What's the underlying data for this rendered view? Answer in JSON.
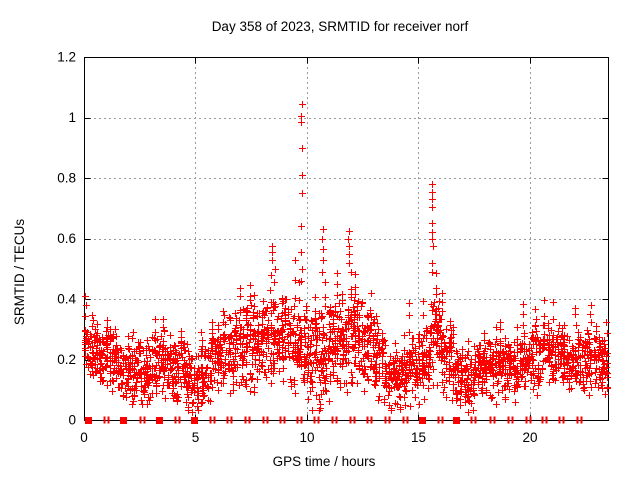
{
  "chart_data": {
    "type": "scatter",
    "title": "Day 358 of 2023, SRMTID for receiver norf",
    "xlabel": "GPS time / hours",
    "ylabel": "SRMTID / TECUs",
    "xlim": [
      0,
      23.5
    ],
    "ylim": [
      0,
      1.2
    ],
    "xticks": [
      0,
      5,
      10,
      15,
      20
    ],
    "yticks": [
      0,
      0.2,
      0.4,
      0.6,
      0.8,
      1,
      1.2
    ],
    "grid": {
      "on": true,
      "color": "#9a9a9a",
      "dash": "2 3"
    },
    "frame_color": "#000000",
    "marker": {
      "shape": "plus",
      "color": "#ff0000",
      "size": 7
    },
    "series": [
      {
        "name": "SRMTID",
        "note": "dense plus-marker scatter; envelope_bins give [startHour, bandLow, bandHigh, tailMax] per 0.5 h bin as read from the plot",
        "envelope_bins": [
          [
            0.0,
            0.14,
            0.3,
            0.36
          ],
          [
            0.5,
            0.13,
            0.28,
            0.33
          ],
          [
            1.0,
            0.1,
            0.3,
            0.36
          ],
          [
            1.5,
            0.08,
            0.24,
            0.3
          ],
          [
            2.0,
            0.08,
            0.26,
            0.3
          ],
          [
            2.5,
            0.06,
            0.24,
            0.28
          ],
          [
            3.0,
            0.1,
            0.28,
            0.35
          ],
          [
            3.5,
            0.1,
            0.3,
            0.35
          ],
          [
            4.0,
            0.08,
            0.26,
            0.3
          ],
          [
            4.5,
            0.05,
            0.22,
            0.26
          ],
          [
            5.0,
            0.06,
            0.24,
            0.3
          ],
          [
            5.5,
            0.1,
            0.28,
            0.33
          ],
          [
            6.0,
            0.12,
            0.32,
            0.38
          ],
          [
            6.5,
            0.12,
            0.36,
            0.47
          ],
          [
            7.0,
            0.13,
            0.38,
            0.47
          ],
          [
            7.5,
            0.12,
            0.36,
            0.44
          ],
          [
            8.0,
            0.14,
            0.4,
            0.52
          ],
          [
            8.5,
            0.15,
            0.42,
            0.55
          ],
          [
            9.0,
            0.13,
            0.4,
            0.55
          ],
          [
            9.5,
            0.12,
            0.38,
            0.5
          ],
          [
            10.0,
            0.08,
            0.34,
            0.44
          ],
          [
            10.5,
            0.08,
            0.36,
            0.5
          ],
          [
            11.0,
            0.12,
            0.4,
            0.52
          ],
          [
            11.5,
            0.13,
            0.42,
            0.52
          ],
          [
            12.0,
            0.13,
            0.4,
            0.5
          ],
          [
            12.5,
            0.1,
            0.36,
            0.45
          ],
          [
            13.0,
            0.08,
            0.3,
            0.38
          ],
          [
            13.5,
            0.05,
            0.22,
            0.28
          ],
          [
            14.0,
            0.06,
            0.22,
            0.3
          ],
          [
            14.5,
            0.08,
            0.28,
            0.42
          ],
          [
            15.0,
            0.1,
            0.32,
            0.45
          ],
          [
            15.5,
            0.13,
            0.4,
            0.5
          ],
          [
            16.0,
            0.12,
            0.35,
            0.45
          ],
          [
            16.5,
            0.06,
            0.24,
            0.33
          ],
          [
            17.0,
            0.05,
            0.22,
            0.28
          ],
          [
            17.5,
            0.08,
            0.25,
            0.31
          ],
          [
            18.0,
            0.08,
            0.26,
            0.33
          ],
          [
            18.5,
            0.1,
            0.28,
            0.36
          ],
          [
            19.0,
            0.08,
            0.26,
            0.33
          ],
          [
            19.5,
            0.11,
            0.3,
            0.41
          ],
          [
            20.0,
            0.11,
            0.32,
            0.38
          ],
          [
            20.5,
            0.13,
            0.33,
            0.42
          ],
          [
            21.0,
            0.13,
            0.32,
            0.42
          ],
          [
            21.5,
            0.1,
            0.28,
            0.34
          ],
          [
            22.0,
            0.1,
            0.3,
            0.4
          ],
          [
            22.5,
            0.12,
            0.32,
            0.4
          ],
          [
            23.0,
            0.1,
            0.28,
            0.35
          ]
        ],
        "spikes": [
          {
            "x": 0.07,
            "values": [
              0.41,
              0.38,
              0.345
            ]
          },
          {
            "x": 8.42,
            "values": [
              0.575,
              0.555,
              0.53
            ]
          },
          {
            "x": 9.75,
            "values": [
              1.045,
              1.005,
              0.985,
              0.9,
              0.81,
              0.75,
              0.64,
              0.555,
              0.5,
              0.46
            ]
          },
          {
            "x": 10.7,
            "values": [
              0.63,
              0.6,
              0.565,
              0.53,
              0.49
            ]
          },
          {
            "x": 11.87,
            "values": [
              0.625,
              0.6,
              0.575,
              0.55,
              0.52
            ]
          },
          {
            "x": 15.62,
            "values": [
              0.78,
              0.755,
              0.73,
              0.705,
              0.65,
              0.62,
              0.6,
              0.575,
              0.52,
              0.49
            ]
          }
        ]
      }
    ],
    "zero_markers": {
      "note": "red markers sitting on the y=0 axis line",
      "squares": [
        0.19,
        1.76,
        3.36,
        4.95,
        15.14,
        16.68
      ],
      "pairs": [
        0.99,
        2.59,
        4.16,
        5.73,
        6.5,
        7.3,
        8.1,
        8.9,
        9.64,
        10.42,
        11.2,
        12.0,
        12.8,
        13.6,
        14.4,
        15.96,
        17.45,
        18.3,
        19.1,
        19.9,
        20.65,
        21.4,
        22.2
      ]
    },
    "seed": 358
  }
}
